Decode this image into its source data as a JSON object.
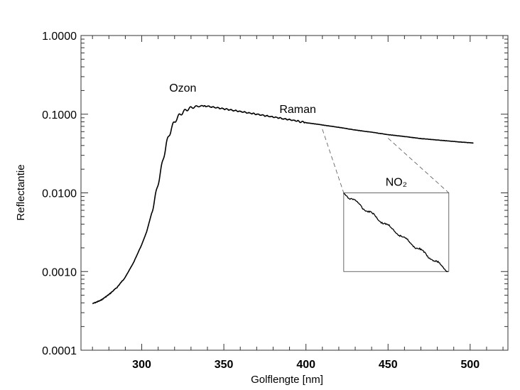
{
  "chart_data": {
    "type": "line",
    "xlabel": "Golflengte [nm]",
    "ylabel": "Reflectantie",
    "x_scale": "linear",
    "y_scale": "log",
    "xlim": [
      263,
      523
    ],
    "ylim": [
      0.0001,
      1.0
    ],
    "x_ticks": [
      300,
      350,
      400,
      450,
      500
    ],
    "x_tick_labels": [
      "300",
      "350",
      "400",
      "450",
      "500"
    ],
    "y_ticks": [
      0.0001,
      0.001,
      0.01,
      0.1,
      1.0
    ],
    "y_tick_labels": [
      "0.0001",
      "0.0010",
      "0.0100",
      "0.1000",
      "1.0000"
    ],
    "grid": false,
    "series": [
      {
        "x": [
          270,
          275,
          280,
          285,
          290,
          295,
          300,
          303,
          306,
          309,
          312,
          315,
          318,
          321,
          324,
          327,
          330,
          335,
          340,
          345,
          350,
          360,
          370,
          380,
          390,
          400,
          410,
          420,
          430,
          440,
          450,
          460,
          470,
          480,
          490,
          502
        ],
        "y": [
          0.00039,
          0.00043,
          0.00051,
          0.00063,
          0.00085,
          0.0013,
          0.0022,
          0.0032,
          0.0055,
          0.0105,
          0.021,
          0.042,
          0.066,
          0.087,
          0.102,
          0.113,
          0.121,
          0.127,
          0.126,
          0.122,
          0.117,
          0.108,
          0.1,
          0.092,
          0.085,
          0.078,
          0.073,
          0.068,
          0.063,
          0.059,
          0.055,
          0.052,
          0.049,
          0.047,
          0.045,
          0.043
        ]
      }
    ],
    "annotations": [
      {
        "text": "Ozon",
        "x": 325,
        "y": 0.13
      },
      {
        "text": "Raman",
        "x": 395,
        "y": 0.1
      },
      {
        "text": "NO₂",
        "x_range": [
          423,
          487
        ],
        "y_range": [
          0.001,
          0.01
        ]
      }
    ]
  }
}
